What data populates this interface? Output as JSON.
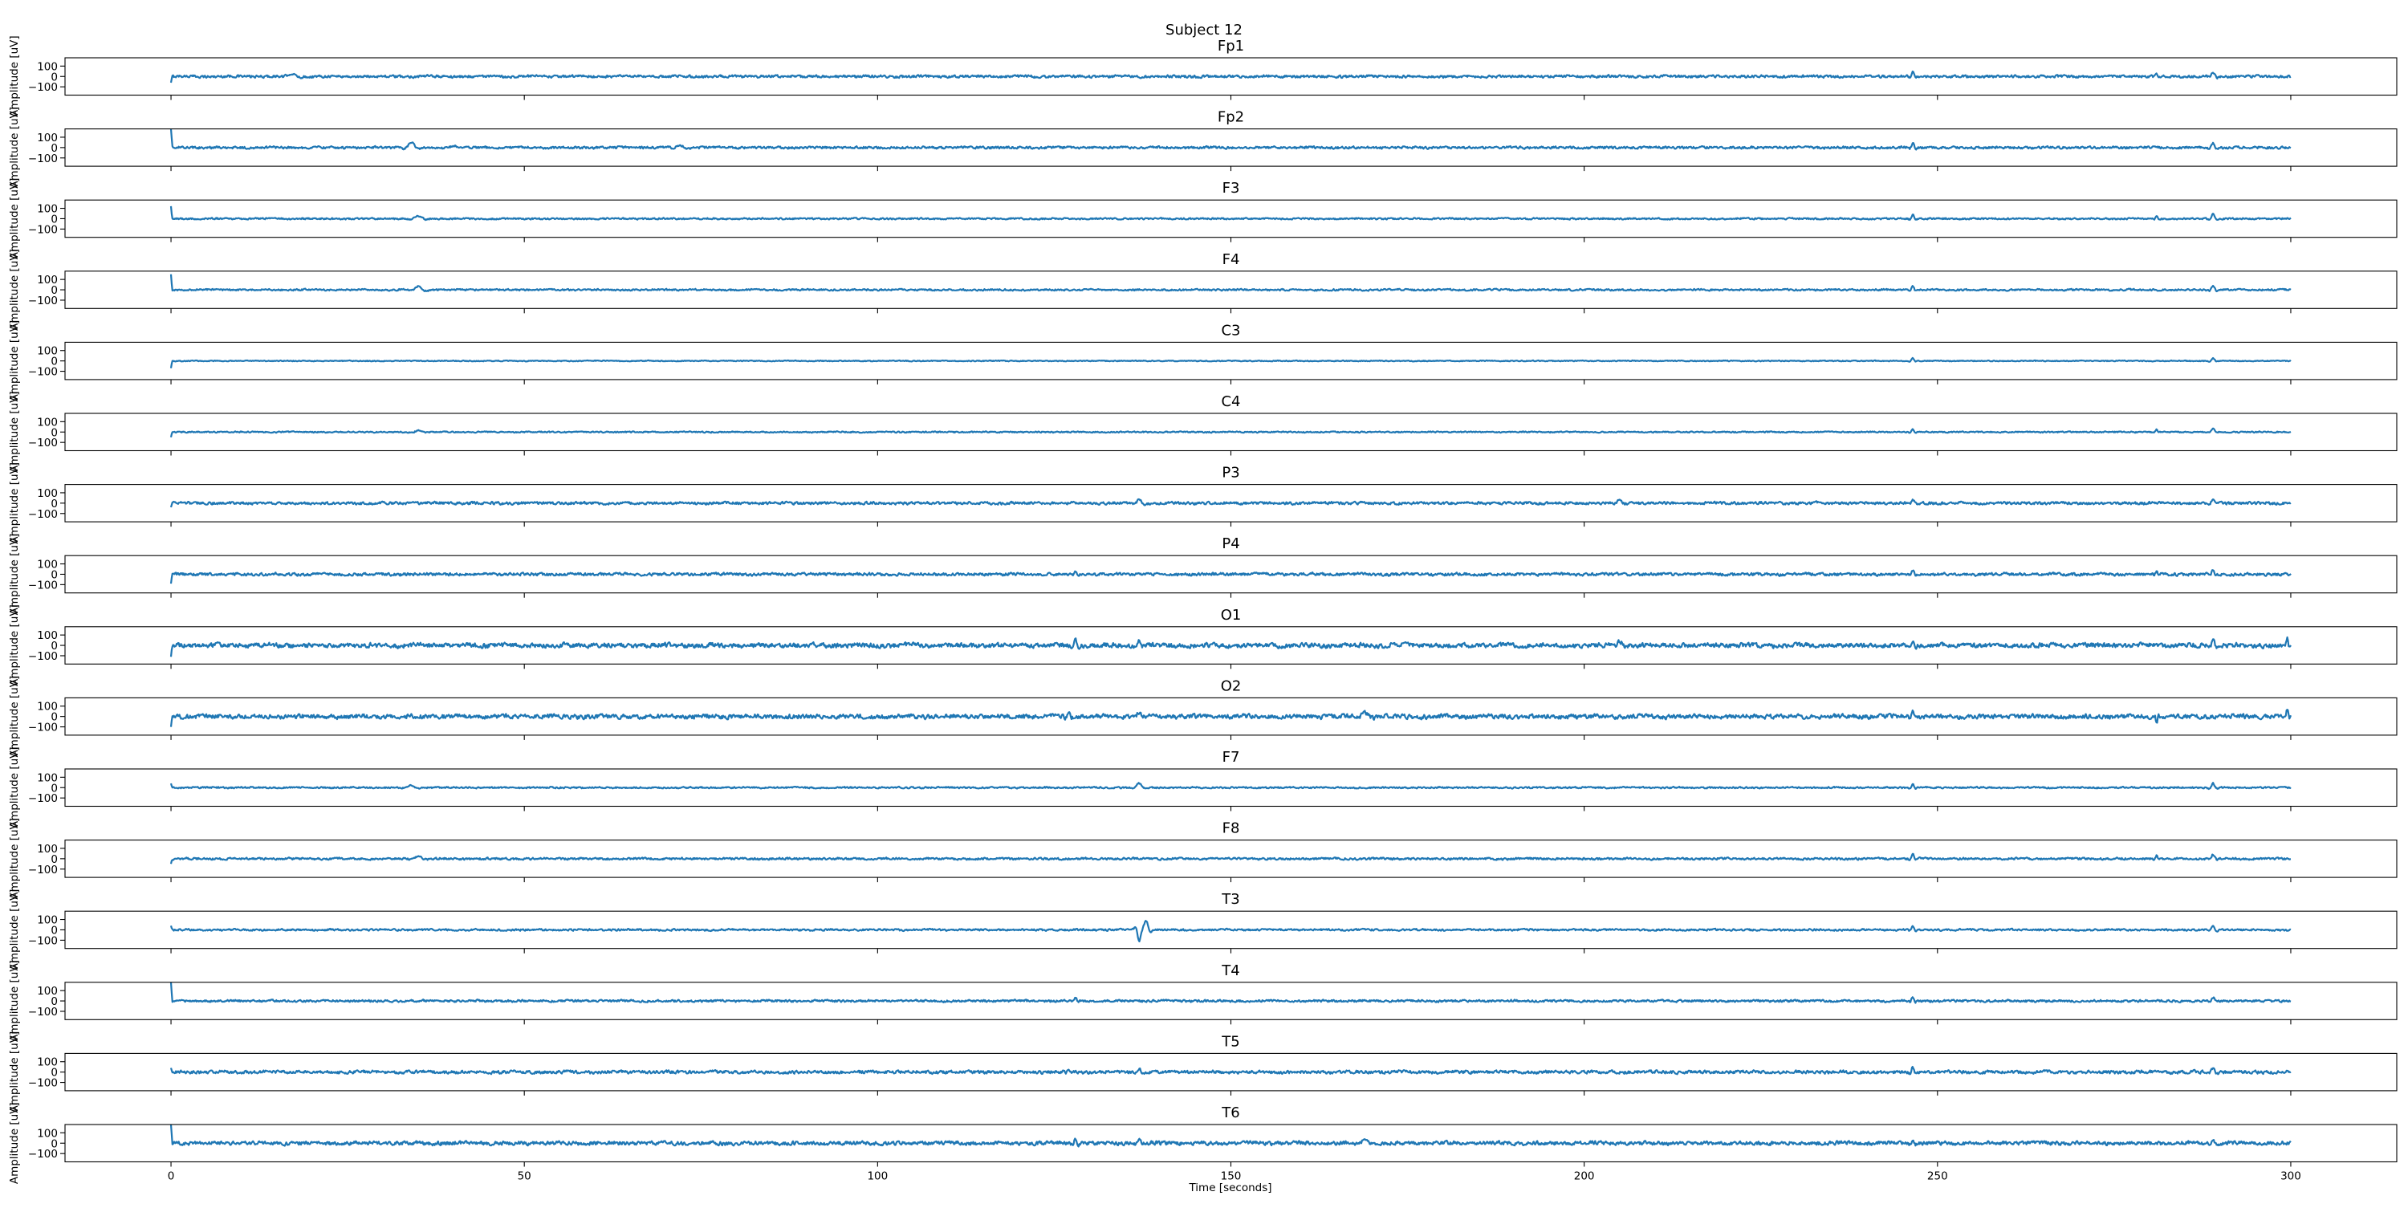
{
  "chart_data": {
    "type": "line",
    "title": "Subject 12",
    "xlabel": "Time [seconds]",
    "ylabel": "Amplitude [uV]",
    "xlim": [
      -15,
      315
    ],
    "ylim": [
      -180,
      180
    ],
    "xticks": [
      0,
      50,
      100,
      150,
      200,
      250,
      300
    ],
    "xtick_labels": [
      "0",
      "50",
      "100",
      "150",
      "200",
      "250",
      "300"
    ],
    "yticks": [
      100,
      0,
      -100
    ],
    "ytick_labels": [
      "100",
      "0",
      "−100"
    ],
    "x_range": [
      0,
      300
    ],
    "grid": false,
    "color": "#1f77b4",
    "panels": [
      {
        "name": "Fp1",
        "noise": 16,
        "onset": -60,
        "events": [
          {
            "t": 17,
            "a": 25,
            "w": 1.2
          },
          {
            "t": 246.5,
            "a": 55,
            "w": 0.4
          },
          {
            "t": 281,
            "a": 30,
            "w": 0.3
          },
          {
            "t": 289,
            "a": 45,
            "w": 0.5
          }
        ]
      },
      {
        "name": "Fp2",
        "noise": 15,
        "onset": 230,
        "events": [
          {
            "t": 34,
            "a": 45,
            "w": 1.0
          },
          {
            "t": 40,
            "a": 20,
            "w": 1.0
          },
          {
            "t": 72,
            "a": 20,
            "w": 1.0
          },
          {
            "t": 246.5,
            "a": 45,
            "w": 0.4
          },
          {
            "t": 289,
            "a": 40,
            "w": 0.5
          }
        ]
      },
      {
        "name": "F3",
        "noise": 10,
        "onset": 120,
        "events": [
          {
            "t": 35,
            "a": 25,
            "w": 1.0
          },
          {
            "t": 246.5,
            "a": 40,
            "w": 0.4
          },
          {
            "t": 281,
            "a": 30,
            "w": 0.3
          },
          {
            "t": 289,
            "a": 45,
            "w": 0.5
          }
        ]
      },
      {
        "name": "F4",
        "noise": 11,
        "onset": 150,
        "events": [
          {
            "t": 35,
            "a": 35,
            "w": 1.0
          },
          {
            "t": 246.5,
            "a": 40,
            "w": 0.4
          },
          {
            "t": 289,
            "a": 35,
            "w": 0.5
          }
        ]
      },
      {
        "name": "C3",
        "noise": 6,
        "onset": -70,
        "events": [
          {
            "t": 246.5,
            "a": 30,
            "w": 0.4
          },
          {
            "t": 289,
            "a": 25,
            "w": 0.5
          }
        ]
      },
      {
        "name": "C4",
        "noise": 8,
        "onset": -50,
        "events": [
          {
            "t": 35,
            "a": 15,
            "w": 1.0
          },
          {
            "t": 246.5,
            "a": 30,
            "w": 0.4
          },
          {
            "t": 281,
            "a": 25,
            "w": 0.3
          },
          {
            "t": 289,
            "a": 30,
            "w": 0.5
          }
        ]
      },
      {
        "name": "P3",
        "noise": 17,
        "onset": -40,
        "events": [
          {
            "t": 137,
            "a": 45,
            "w": 0.6
          },
          {
            "t": 205,
            "a": 25,
            "w": 0.8
          },
          {
            "t": 246.5,
            "a": 40,
            "w": 0.4
          },
          {
            "t": 289,
            "a": 40,
            "w": 0.5
          }
        ]
      },
      {
        "name": "P4",
        "noise": 18,
        "onset": -90,
        "events": [
          {
            "t": 128,
            "a": 30,
            "w": 0.4
          },
          {
            "t": 246.5,
            "a": 40,
            "w": 0.4
          },
          {
            "t": 281,
            "a": 30,
            "w": 0.3
          },
          {
            "t": 289,
            "a": 35,
            "w": 0.5
          }
        ]
      },
      {
        "name": "O1",
        "noise": 30,
        "onset": -110,
        "events": [
          {
            "t": 128,
            "a": 45,
            "w": 0.4
          },
          {
            "t": 137,
            "a": 40,
            "w": 0.6
          },
          {
            "t": 205,
            "a": 45,
            "w": 0.8
          },
          {
            "t": 246.5,
            "a": 50,
            "w": 0.4
          },
          {
            "t": 289,
            "a": 50,
            "w": 0.5
          },
          {
            "t": 299.5,
            "a": 70,
            "w": 0.3
          }
        ]
      },
      {
        "name": "O2",
        "noise": 28,
        "onset": -100,
        "events": [
          {
            "t": 127,
            "a": 55,
            "w": 0.4
          },
          {
            "t": 137,
            "a": 40,
            "w": 0.6
          },
          {
            "t": 169,
            "a": 45,
            "w": 1.0
          },
          {
            "t": 246.5,
            "a": 60,
            "w": 0.4
          },
          {
            "t": 281,
            "a": -55,
            "w": 0.3
          },
          {
            "t": 299.5,
            "a": 70,
            "w": 0.3
          }
        ]
      },
      {
        "name": "F7",
        "noise": 10,
        "onset": 40,
        "events": [
          {
            "t": 34,
            "a": 25,
            "w": 1.0
          },
          {
            "t": 137,
            "a": 40,
            "w": 0.8
          },
          {
            "t": 246.5,
            "a": 40,
            "w": 0.4
          },
          {
            "t": 289,
            "a": 40,
            "w": 0.5
          }
        ]
      },
      {
        "name": "F8",
        "noise": 13,
        "onset": -50,
        "events": [
          {
            "t": 35,
            "a": 25,
            "w": 1.0
          },
          {
            "t": 246.5,
            "a": 45,
            "w": 0.4
          },
          {
            "t": 281,
            "a": 30,
            "w": 0.3
          },
          {
            "t": 289,
            "a": 40,
            "w": 0.5
          }
        ]
      },
      {
        "name": "T3",
        "noise": 12,
        "onset": 40,
        "events": [
          {
            "t": 137,
            "a": -110,
            "w": 0.5
          },
          {
            "t": 138,
            "a": 90,
            "w": 0.6
          },
          {
            "t": 246.5,
            "a": 40,
            "w": 0.4
          },
          {
            "t": 289,
            "a": 40,
            "w": 0.5
          }
        ]
      },
      {
        "name": "T4",
        "noise": 14,
        "onset": 200,
        "events": [
          {
            "t": 128,
            "a": 30,
            "w": 0.4
          },
          {
            "t": 246.5,
            "a": 40,
            "w": 0.4
          },
          {
            "t": 289,
            "a": 35,
            "w": 0.5
          }
        ]
      },
      {
        "name": "T5",
        "noise": 20,
        "onset": 40,
        "events": [
          {
            "t": 127,
            "a": 30,
            "w": 0.4
          },
          {
            "t": 137,
            "a": 35,
            "w": 0.6
          },
          {
            "t": 246.5,
            "a": 45,
            "w": 0.4
          },
          {
            "t": 289,
            "a": 40,
            "w": 0.5
          }
        ]
      },
      {
        "name": "T6",
        "noise": 24,
        "onset": 220,
        "events": [
          {
            "t": 128,
            "a": 40,
            "w": 0.4
          },
          {
            "t": 137,
            "a": 30,
            "w": 0.6
          },
          {
            "t": 169,
            "a": 40,
            "w": 1.0
          },
          {
            "t": 246.5,
            "a": 45,
            "w": 0.4
          },
          {
            "t": 289,
            "a": 40,
            "w": 0.5
          }
        ]
      }
    ]
  }
}
